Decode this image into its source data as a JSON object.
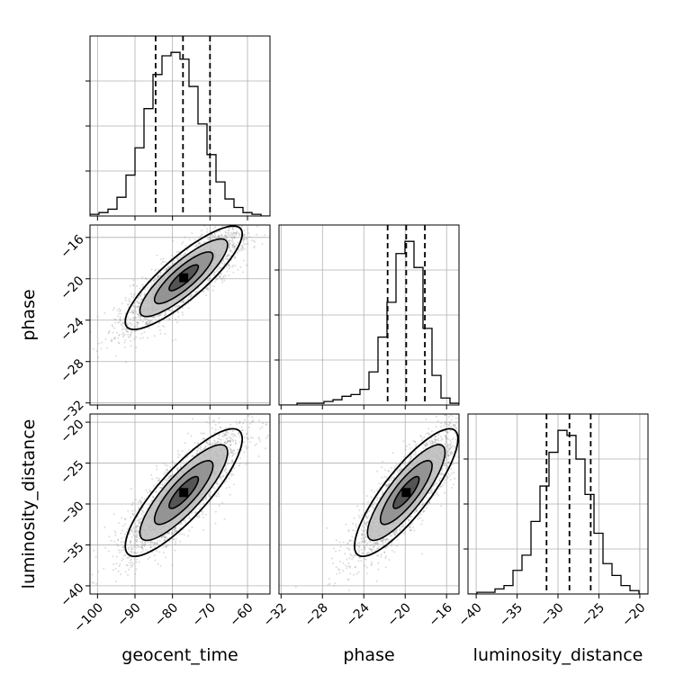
{
  "figure": {
    "type": "corner-plot"
  },
  "chart_data": {
    "type": "corner",
    "parameters": [
      "geocent_time",
      "phase",
      "luminosity_distance"
    ],
    "ranges": {
      "geocent_time": [
        -102,
        -54
      ],
      "phase": [
        -32.2,
        -14.8
      ],
      "luminosity_distance": [
        -41,
        -19
      ]
    },
    "ticks": {
      "geocent_time": [
        -100,
        -90,
        -80,
        -70,
        -60
      ],
      "phase": [
        -32,
        -28,
        -24,
        -20,
        -16
      ],
      "luminosity_distance": [
        -40,
        -35,
        -30,
        -25,
        -20
      ]
    },
    "tick_labels": {
      "geocent_time": [
        "−100",
        "−90",
        "−80",
        "−70",
        "−60"
      ],
      "phase": [
        "−32",
        "−28",
        "−24",
        "−20",
        "−16"
      ],
      "luminosity_distance": [
        "−40",
        "−35",
        "−30",
        "−25",
        "−20"
      ]
    },
    "quantiles": {
      "geocent_time": [
        -84.5,
        -77.2,
        -70.0
      ],
      "phase": [
        -21.7,
        -19.9,
        -18.1
      ],
      "luminosity_distance": [
        -31.4,
        -28.6,
        -26.0
      ]
    },
    "histograms": {
      "geocent_time": {
        "edges": [
          -102,
          -99.6,
          -97.2,
          -94.8,
          -92.4,
          -90,
          -87.6,
          -85.2,
          -82.8,
          -80.4,
          -78,
          -75.6,
          -73.2,
          -70.8,
          -68.4,
          -66,
          -63.6,
          -61.2,
          -58.8,
          -56.4,
          -54
        ],
        "counts": [
          1,
          2,
          4,
          11,
          24,
          40,
          63,
          83,
          94,
          96,
          92,
          76,
          54,
          36,
          20,
          10,
          5,
          2,
          1,
          0
        ]
      },
      "phase": {
        "edges": [
          -32.2,
          -31.33,
          -30.46,
          -29.59,
          -28.72,
          -27.85,
          -26.98,
          -26.11,
          -25.24,
          -24.37,
          -23.5,
          -22.63,
          -21.76,
          -20.89,
          -20.02,
          -19.15,
          -18.28,
          -17.41,
          -16.54,
          -15.67,
          -14.8
        ],
        "counts": [
          0,
          0,
          1,
          1,
          1,
          2,
          3,
          5,
          6,
          9,
          19,
          39,
          59,
          87,
          94,
          79,
          44,
          17,
          4,
          1
        ]
      },
      "luminosity_distance": {
        "edges": [
          -41,
          -39.9,
          -38.8,
          -37.7,
          -36.6,
          -35.5,
          -34.4,
          -33.3,
          -32.2,
          -31.1,
          -30,
          -28.9,
          -27.8,
          -26.7,
          -25.6,
          -24.5,
          -23.4,
          -22.3,
          -21.2,
          -20.1,
          -19
        ],
        "counts": [
          0,
          1,
          1,
          3,
          5,
          14,
          23,
          43,
          64,
          84,
          97,
          94,
          80,
          59,
          36,
          18,
          11,
          5,
          2,
          0
        ]
      }
    },
    "pairs": [
      {
        "x": "geocent_time",
        "y": "phase",
        "mean": [
          -77,
          -19.9
        ],
        "std": [
          7.8,
          2.5
        ],
        "rho": 0.85
      },
      {
        "x": "geocent_time",
        "y": "luminosity_distance",
        "mean": [
          -77,
          -28.6
        ],
        "std": [
          7.8,
          3.9
        ],
        "rho": 0.84
      },
      {
        "x": "phase",
        "y": "luminosity_distance",
        "mean": [
          -19.9,
          -28.6
        ],
        "std": [
          2.5,
          3.9
        ],
        "rho": 0.84
      }
    ],
    "contour_levels_sigma": [
      0.5,
      1.0,
      1.5,
      2.0
    ],
    "grid": true
  }
}
